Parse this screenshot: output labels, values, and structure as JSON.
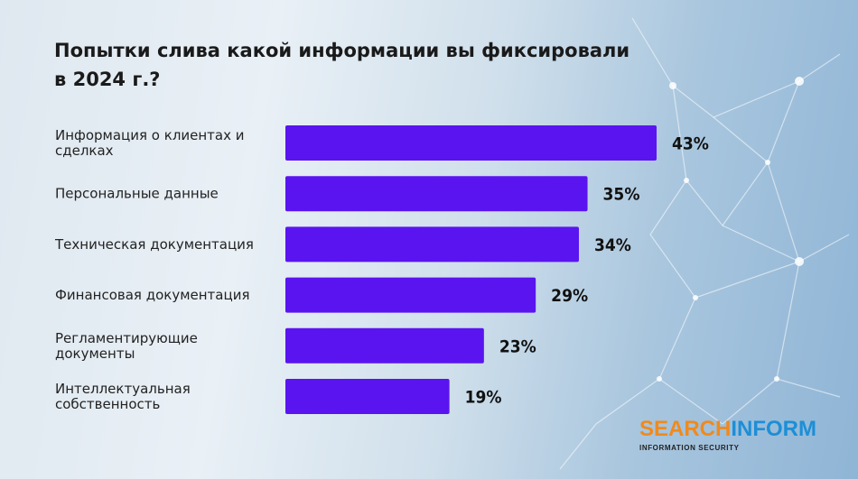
{
  "title_lines": [
    "Попытки слива какой информации вы фиксировали",
    "в 2024 г.?"
  ],
  "colors": {
    "bar": "#5a14f0",
    "orange": "#f08a1c",
    "blue": "#1d8fd6"
  },
  "logo": {
    "part1": "SEARCH",
    "part2": "INFORM",
    "tagline": "INFORMATION SECURITY"
  },
  "chart_data": {
    "type": "bar",
    "orientation": "horizontal",
    "title": "Попытки слива какой информации вы фиксировали в 2024 г.?",
    "categories": [
      [
        "Информация о клиентах и",
        "сделках"
      ],
      [
        "Персональные данные"
      ],
      [
        "Техническая документация"
      ],
      [
        "Финансовая документация"
      ],
      [
        "Регламентирующие",
        "документы"
      ],
      [
        "Интеллектуальная",
        "собственность"
      ]
    ],
    "values": [
      43,
      35,
      34,
      29,
      23,
      19
    ],
    "value_labels": [
      "43%",
      "35%",
      "34%",
      "29%",
      "23%",
      "19%"
    ],
    "unit": "%",
    "xlim": [
      0,
      43
    ],
    "grid": false,
    "legend": "none"
  }
}
